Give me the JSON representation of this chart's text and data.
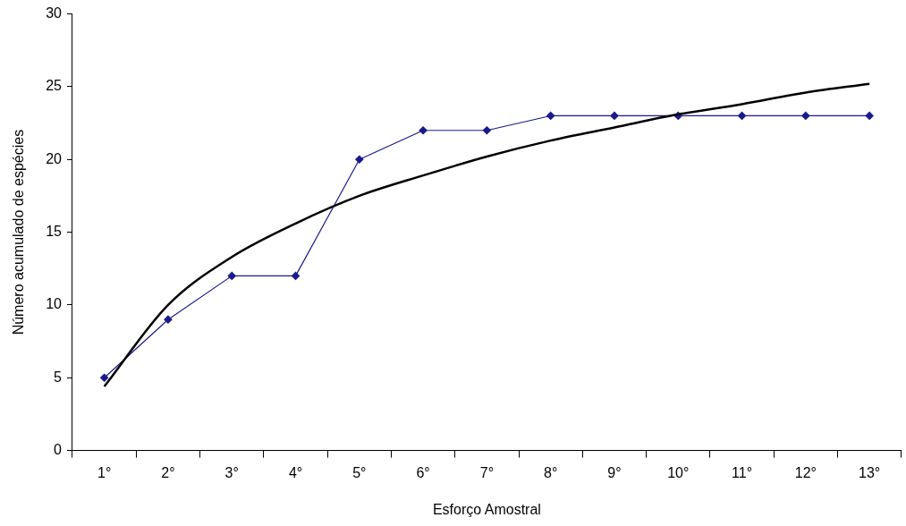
{
  "chart_data": {
    "type": "line",
    "xlabel": "Esforço Amostral",
    "ylabel": "Número acumulado de espécies",
    "categories": [
      "1°",
      "2°",
      "3°",
      "4°",
      "5°",
      "6°",
      "7°",
      "8°",
      "9°",
      "10°",
      "11°",
      "12°",
      "13°"
    ],
    "series": [
      {
        "color": "#1a1a8c",
        "marker": "diamond",
        "values": [
          5,
          9,
          12,
          12,
          20,
          22,
          22,
          23,
          23,
          23,
          23,
          23,
          23
        ]
      },
      {
        "color": "#000000",
        "marker": "none",
        "values": [
          4.4,
          10.0,
          13.3,
          15.6,
          17.5,
          18.9,
          20.2,
          21.3,
          22.2,
          23.1,
          23.8,
          24.6,
          25.2
        ]
      }
    ],
    "ylim": [
      0,
      30
    ],
    "yticks": [
      0,
      5,
      10,
      15,
      20,
      25,
      30
    ],
    "grid": false,
    "legend": false
  }
}
